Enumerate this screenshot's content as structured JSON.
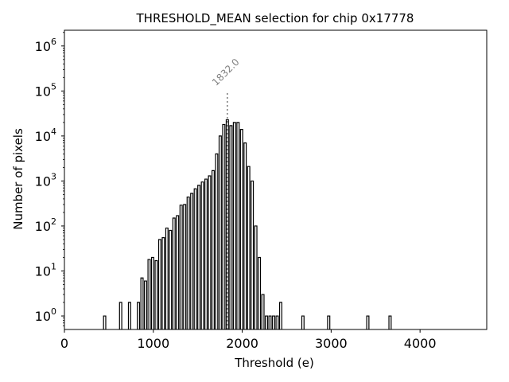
{
  "chart_data": {
    "type": "histogram",
    "title": "THRESHOLD_MEAN selection for chip 0x17778",
    "xlabel": "Threshold (e)",
    "ylabel": "Number of pixels",
    "xlim": [
      0,
      4750
    ],
    "ylim_log10": [
      -0.3,
      6.35
    ],
    "yscale": "log",
    "xticks": [
      {
        "value": 0,
        "label": "0"
      },
      {
        "value": 1000,
        "label": "1000"
      },
      {
        "value": 2000,
        "label": "2000"
      },
      {
        "value": 3000,
        "label": "3000"
      },
      {
        "value": 4000,
        "label": "4000"
      }
    ],
    "yticks": [
      {
        "exp": 0,
        "base": "10",
        "sup": "0"
      },
      {
        "exp": 1,
        "base": "10",
        "sup": "1"
      },
      {
        "exp": 2,
        "base": "10",
        "sup": "2"
      },
      {
        "exp": 3,
        "base": "10",
        "sup": "3"
      },
      {
        "exp": 4,
        "base": "10",
        "sup": "4"
      },
      {
        "exp": 5,
        "base": "10",
        "sup": "5"
      },
      {
        "exp": 6,
        "base": "10",
        "sup": "6"
      }
    ],
    "marker": {
      "x": 1832.0,
      "label": "1832.0",
      "ymax": 100000
    },
    "bin_width": 25,
    "bins": [
      [
        440,
        1
      ],
      [
        620,
        2
      ],
      [
        720,
        2
      ],
      [
        820,
        2
      ],
      [
        860,
        7
      ],
      [
        900,
        6
      ],
      [
        940,
        18
      ],
      [
        980,
        20
      ],
      [
        1020,
        17
      ],
      [
        1060,
        50
      ],
      [
        1100,
        55
      ],
      [
        1140,
        90
      ],
      [
        1180,
        80
      ],
      [
        1220,
        150
      ],
      [
        1260,
        170
      ],
      [
        1300,
        290
      ],
      [
        1340,
        300
      ],
      [
        1380,
        440
      ],
      [
        1420,
        530
      ],
      [
        1460,
        670
      ],
      [
        1500,
        800
      ],
      [
        1540,
        950
      ],
      [
        1580,
        1100
      ],
      [
        1620,
        1300
      ],
      [
        1660,
        1700
      ],
      [
        1700,
        4000
      ],
      [
        1740,
        10000
      ],
      [
        1780,
        18000
      ],
      [
        1820,
        23000
      ],
      [
        1860,
        17000
      ],
      [
        1900,
        20000
      ],
      [
        1940,
        20000
      ],
      [
        1980,
        14000
      ],
      [
        2020,
        7000
      ],
      [
        2060,
        2100
      ],
      [
        2100,
        1000
      ],
      [
        2140,
        100
      ],
      [
        2180,
        20
      ],
      [
        2220,
        3
      ],
      [
        2260,
        1
      ],
      [
        2300,
        1
      ],
      [
        2340,
        1
      ],
      [
        2380,
        1
      ],
      [
        2420,
        2
      ],
      [
        2670,
        1
      ],
      [
        2960,
        1
      ],
      [
        3400,
        1
      ],
      [
        3650,
        1
      ]
    ]
  }
}
